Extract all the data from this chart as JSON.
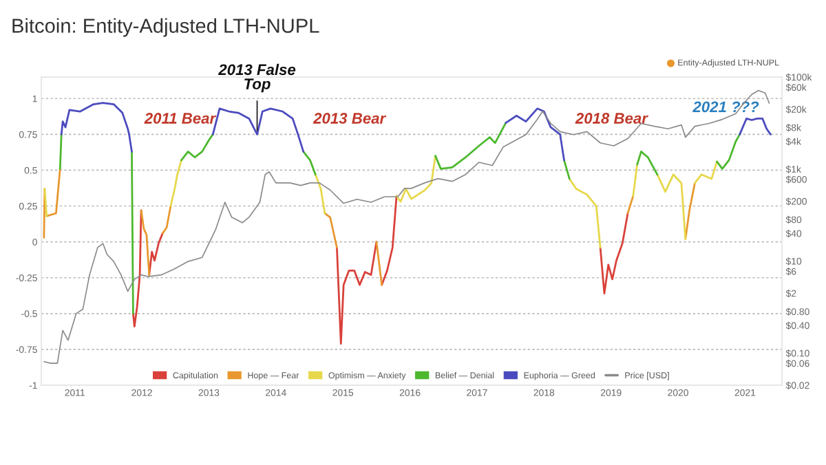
{
  "chart_data": {
    "type": "line",
    "title": "Bitcoin: Entity-Adjusted LTH-NUPL",
    "xlim": [
      2010.5,
      2021.55
    ],
    "xticks": [
      2011,
      2012,
      2013,
      2014,
      2015,
      2016,
      2017,
      2018,
      2019,
      2020,
      2021
    ],
    "ylim": [
      -1,
      1.15
    ],
    "yticks": [
      1,
      0.75,
      0.5,
      0.25,
      0,
      -0.25,
      -0.5,
      -0.75,
      -1
    ],
    "y2lim": [
      0.02,
      100000
    ],
    "y2ticks": [
      {
        "value": 100000,
        "label": "$100k"
      },
      {
        "value": 60000,
        "label": "$60k"
      },
      {
        "value": 20000,
        "label": "$20k"
      },
      {
        "value": 8000,
        "label": "$8k"
      },
      {
        "value": 4000,
        "label": "$4k"
      },
      {
        "value": 1000,
        "label": "$1k"
      },
      {
        "value": 600,
        "label": "$600"
      },
      {
        "value": 200,
        "label": "$200"
      },
      {
        "value": 80,
        "label": "$80"
      },
      {
        "value": 40,
        "label": "$40"
      },
      {
        "value": 10,
        "label": "$10"
      },
      {
        "value": 6,
        "label": "$6"
      },
      {
        "value": 2,
        "label": "$2"
      },
      {
        "value": 0.8,
        "label": "$0.80"
      },
      {
        "value": 0.4,
        "label": "$0.40"
      },
      {
        "value": 0.1,
        "label": "$0.10"
      },
      {
        "value": 0.06,
        "label": "$0.06"
      },
      {
        "value": 0.02,
        "label": "$0.02"
      }
    ],
    "log": "y2",
    "grid": "y",
    "legend": "bottom",
    "series": [
      {
        "name": "Capitulation",
        "color": "#d9413a",
        "x": [
          2011.87,
          2011.89,
          2011.93,
          2011.97,
          2011.99,
          null,
          2012.11,
          2012.15,
          2012.19,
          2012.25,
          2012.31,
          null,
          2014.91,
          2014.97,
          2015.01,
          2015.09,
          2015.17,
          2015.25,
          2015.33,
          2015.42,
          2015.5,
          null,
          2015.58,
          2015.66,
          2015.74,
          2015.8,
          null,
          2018.84,
          2018.9,
          2018.96,
          2019.02,
          2019.08,
          2019.17,
          2019.25
        ],
        "values": [
          -0.5,
          -0.59,
          -0.45,
          -0.23,
          0.22,
          null,
          -0.23,
          -0.07,
          -0.13,
          -0.01,
          0.06,
          null,
          -0.04,
          -0.71,
          -0.3,
          -0.2,
          -0.2,
          -0.3,
          -0.21,
          -0.23,
          0,
          null,
          -0.3,
          -0.2,
          -0.04,
          0.32,
          null,
          -0.04,
          -0.36,
          -0.16,
          -0.26,
          -0.13,
          -0.01,
          0.2
        ]
      },
      {
        "name": "Hope — Fear",
        "color": "#e8982e",
        "x": [
          2010.54,
          2010.55,
          null,
          2010.58,
          2010.72,
          2010.78,
          null,
          2011.99,
          2012.03,
          2012.07,
          2012.11,
          null,
          2012.31,
          2012.37,
          2012.43,
          null,
          2014.73,
          2014.81,
          2014.91,
          null,
          2015.5,
          2015.58,
          null,
          2019.25,
          2019.33,
          null,
          2020.11,
          2020.17,
          2020.25
        ],
        "values": [
          0.03,
          0.37,
          null,
          0.18,
          0.2,
          0.51,
          null,
          0.22,
          0.09,
          0.05,
          -0.23,
          null,
          0.06,
          0.1,
          0.25,
          null,
          0.2,
          0.17,
          -0.04,
          null,
          0,
          -0.3,
          null,
          0.2,
          0.32,
          null,
          0.02,
          0.22,
          0.41
        ]
      },
      {
        "name": "Optimism — Anxiety",
        "color": "#e6d84a",
        "x": [
          2010.55,
          2010.58,
          null,
          2012.43,
          2012.49,
          2012.53,
          2012.59,
          null,
          2014.59,
          2014.67,
          2014.73,
          null,
          2015.8,
          2015.86,
          2015.94,
          2016.02,
          2016.22,
          2016.32,
          2016.38,
          null,
          2018.38,
          2018.48,
          2018.64,
          2018.78,
          2018.84,
          null,
          2019.33,
          2019.39,
          null,
          2019.69,
          2019.81,
          2019.93,
          2020.05,
          2020.11,
          null,
          2020.25,
          2020.35,
          2020.5,
          2020.58
        ],
        "values": [
          0.37,
          0.18,
          null,
          0.25,
          0.37,
          0.47,
          0.57,
          null,
          0.47,
          0.37,
          0.2,
          null,
          0.32,
          0.28,
          0.37,
          0.3,
          0.36,
          0.41,
          0.6,
          null,
          0.44,
          0.37,
          0.33,
          0.25,
          -0.04,
          null,
          0.32,
          0.54,
          null,
          0.47,
          0.35,
          0.47,
          0.41,
          0.02,
          null,
          0.41,
          0.47,
          0.44,
          0.56
        ]
      },
      {
        "name": "Belief — Denial",
        "color": "#4cb82e",
        "x": [
          2010.78,
          2010.8,
          null,
          2011.85,
          2011.87,
          null,
          2012.59,
          2012.69,
          2012.79,
          2012.9,
          2013.0,
          2013.06,
          null,
          2014.41,
          2014.51,
          2014.59,
          null,
          2016.38,
          2016.46,
          2016.63,
          2016.83,
          2017.03,
          2017.19,
          2017.27,
          2017.43,
          null,
          2018.3,
          2018.38,
          null,
          2019.39,
          2019.45,
          2019.55,
          2019.69,
          null,
          2020.58,
          2020.66,
          2020.76,
          2020.86,
          2020.92
        ],
        "values": [
          0.51,
          0.75,
          null,
          0.63,
          -0.5,
          null,
          0.57,
          0.63,
          0.59,
          0.63,
          0.71,
          0.75,
          null,
          0.63,
          0.57,
          0.47,
          null,
          0.6,
          0.51,
          0.52,
          0.59,
          0.67,
          0.73,
          0.69,
          0.83,
          null,
          0.57,
          0.44,
          null,
          0.54,
          0.63,
          0.59,
          0.47,
          null,
          0.56,
          0.51,
          0.57,
          0.7,
          0.75
        ]
      },
      {
        "name": "Euphoria — Greed",
        "color": "#4b4bbf",
        "x": [
          2010.8,
          2010.82,
          2010.86,
          2010.92,
          2011.08,
          2011.28,
          2011.42,
          2011.58,
          2011.71,
          2011.79,
          2011.81,
          2011.85,
          null,
          2013.06,
          2013.16,
          2013.3,
          2013.44,
          2013.6,
          2013.72,
          2013.8,
          2013.92,
          2014.1,
          2014.25,
          2014.33,
          2014.41,
          null,
          2017.43,
          2017.59,
          2017.73,
          2017.9,
          2018.0,
          2018.1,
          2018.24,
          2018.3,
          null,
          2020.92,
          2021.02,
          2021.1,
          2021.18,
          2021.26,
          2021.32,
          2021.38
        ],
        "values": [
          0.75,
          0.84,
          0.8,
          0.92,
          0.91,
          0.96,
          0.97,
          0.96,
          0.9,
          0.79,
          0.75,
          0.63,
          null,
          0.75,
          0.93,
          0.91,
          0.9,
          0.86,
          0.75,
          0.91,
          0.93,
          0.91,
          0.86,
          0.75,
          0.63,
          null,
          0.83,
          0.88,
          0.84,
          0.93,
          0.91,
          0.8,
          0.75,
          0.57,
          null,
          0.75,
          0.86,
          0.85,
          0.86,
          0.86,
          0.79,
          0.75
        ]
      },
      {
        "name": "Price [USD]",
        "color": "#8a8a8a",
        "axis": "y2",
        "x": [
          2010.54,
          2010.64,
          2010.74,
          2010.82,
          2010.9,
          2011.02,
          2011.12,
          2011.22,
          2011.34,
          2011.42,
          2011.48,
          2011.58,
          2011.69,
          2011.79,
          2011.89,
          2011.99,
          2012.09,
          2012.29,
          2012.49,
          2012.69,
          2012.9,
          2013.1,
          2013.24,
          2013.34,
          2013.5,
          2013.6,
          2013.76,
          2013.84,
          2013.9,
          2014.0,
          2014.21,
          2014.37,
          2014.51,
          2014.65,
          2014.81,
          2015.01,
          2015.21,
          2015.42,
          2015.62,
          2015.82,
          2015.92,
          2016.02,
          2016.22,
          2016.42,
          2016.63,
          2016.83,
          2017.03,
          2017.23,
          2017.39,
          2017.73,
          2017.9,
          2017.98,
          2018.1,
          2018.24,
          2018.44,
          2018.64,
          2018.84,
          2019.04,
          2019.25,
          2019.45,
          2019.65,
          2019.85,
          2020.05,
          2020.11,
          2020.25,
          2020.46,
          2020.66,
          2020.86,
          2020.98,
          2021.1,
          2021.2,
          2021.3,
          2021.36
        ],
        "values": [
          0.065,
          0.06,
          0.06,
          0.31,
          0.19,
          0.72,
          0.9,
          5,
          19.6,
          24,
          14,
          9.8,
          5,
          2.2,
          4,
          5,
          4.6,
          5,
          6.8,
          9.8,
          12,
          48,
          190,
          90,
          68,
          90,
          190,
          760,
          870,
          500,
          500,
          440,
          500,
          500,
          350,
          180,
          220,
          190,
          250,
          250,
          380,
          380,
          500,
          620,
          540,
          760,
          1400,
          1200,
          3000,
          5600,
          12000,
          18000,
          9800,
          6500,
          5600,
          6500,
          3700,
          3200,
          4600,
          9800,
          8500,
          7500,
          9100,
          4900,
          8500,
          9800,
          12000,
          16000,
          27000,
          42000,
          51000,
          45000,
          27000
        ]
      }
    ],
    "annotations": [
      {
        "text": "2011 Bear",
        "x": 2011.81,
        "y": 0.75
      },
      {
        "text": "2013 False\nTop",
        "x": 2013.72,
        "y": 0.75
      },
      {
        "text": "2013 Bear",
        "x": 2014.33,
        "y": 0.75
      },
      {
        "text": "2018 Bear",
        "x": 2018.24,
        "y": 0.75
      },
      {
        "text": "2021 ???",
        "x": 2021.38,
        "y": 0.75
      },
      "Entity-Adjusted LTH-NUPL"
    ]
  }
}
